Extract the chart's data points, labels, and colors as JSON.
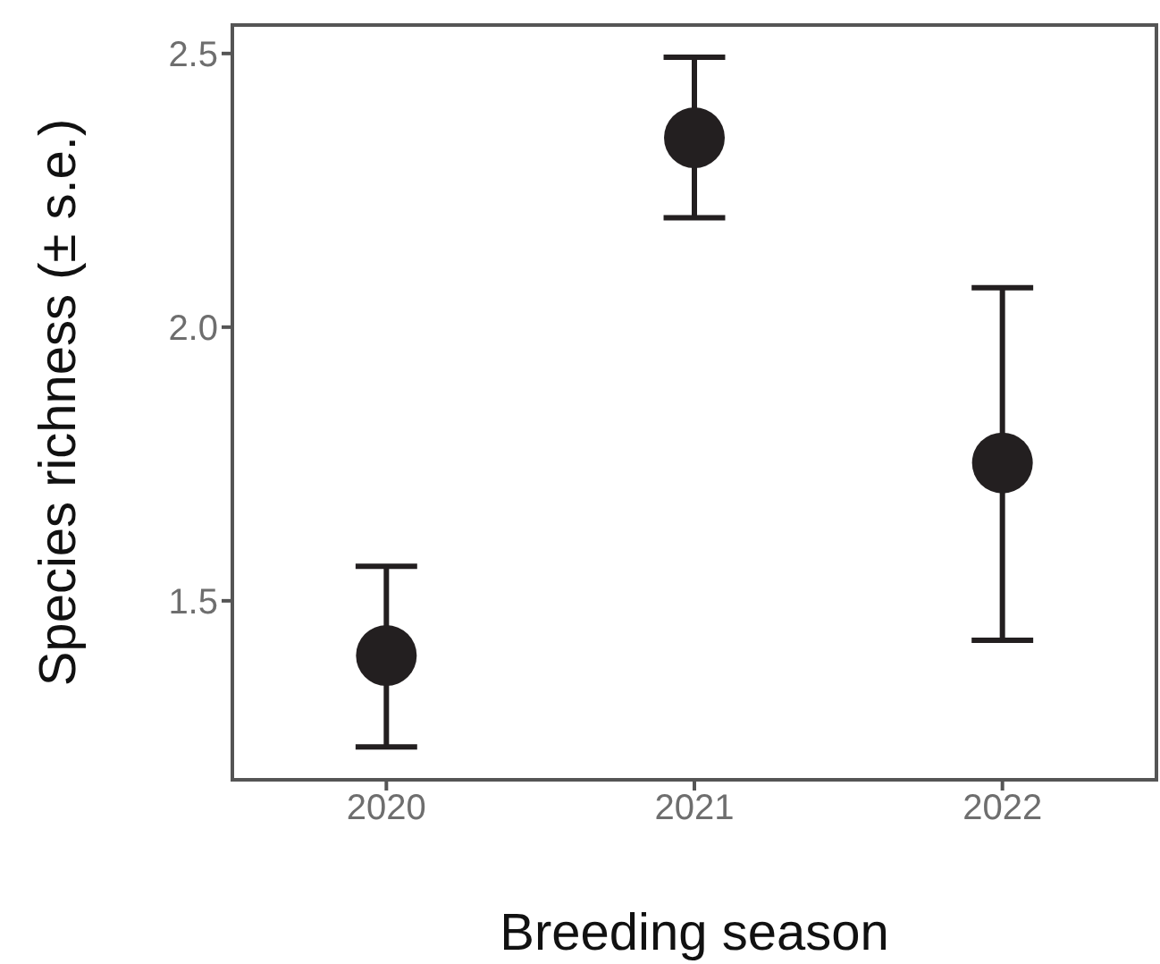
{
  "chart_data": {
    "type": "scatter",
    "xlabel": "Breeding season",
    "ylabel": "Species richness (± s.e.)",
    "categories": [
      "2020",
      "2021",
      "2022"
    ],
    "series": [
      {
        "color": "#231f20",
        "values": [
          1.4,
          2.346,
          1.752
        ],
        "errors": [
          [
            1.233,
            1.563
          ],
          [
            2.2,
            2.493
          ],
          [
            1.428,
            2.072
          ]
        ]
      }
    ],
    "ylim": [
      1.173,
      2.552
    ],
    "yticks": [
      1.5,
      {
        "value": 2,
        "label": "2.0"
      },
      2.5
    ],
    "marker": "circle"
  }
}
